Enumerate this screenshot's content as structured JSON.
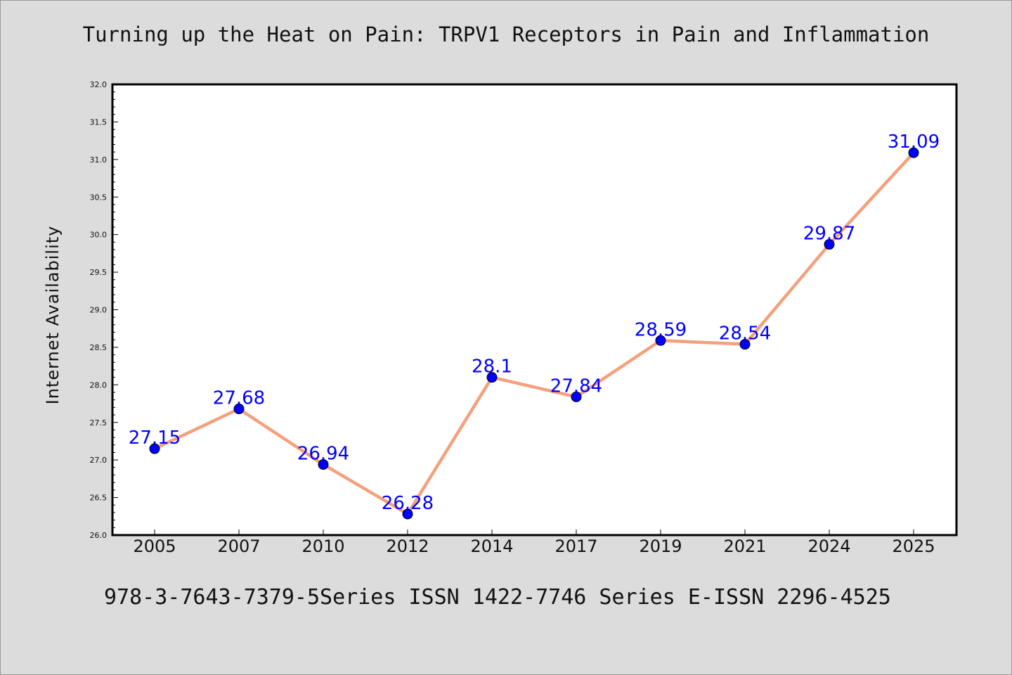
{
  "chart_data": {
    "type": "line",
    "title": "Turning up the Heat on Pain: TRPV1 Receptors in Pain and Inflammation",
    "xlabel": "",
    "ylabel": "Internet Availability",
    "categories": [
      "2005",
      "2007",
      "2010",
      "2012",
      "2014",
      "2017",
      "2019",
      "2021",
      "2024",
      "2025"
    ],
    "series": [
      {
        "values": [
          27.15,
          27.68,
          26.94,
          26.28,
          28.1,
          27.84,
          28.59,
          28.54,
          29.87,
          31.09
        ],
        "point_labels": [
          "27.15",
          "27.68",
          "26.94",
          "26.28",
          "28.1",
          "27.84",
          "28.59",
          "28.54",
          "29.87",
          "31.09"
        ],
        "line_color": "#f4a07c",
        "marker_color": "#0000ff",
        "label_color": "#0000ff"
      }
    ],
    "ylim": [
      26.0,
      32.0
    ],
    "yticks": [
      "26.0",
      "26.5",
      "27.0",
      "27.5",
      "28.0",
      "28.5",
      "29.0",
      "29.5",
      "30.0",
      "30.5",
      "31.0",
      "31.5",
      "32.0"
    ],
    "grid": false,
    "legend": "none"
  },
  "footer": "978-3-7643-7379-5Series ISSN 1422-7746 Series E-ISSN 2296-4525",
  "colors": {
    "background": "#dcdcdc",
    "plot_background": "#ffffff"
  }
}
